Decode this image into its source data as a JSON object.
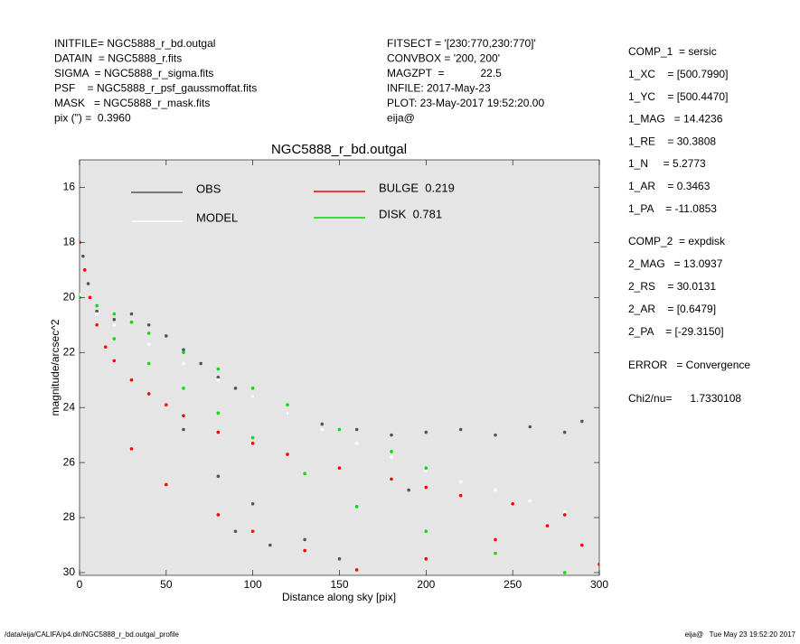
{
  "header": {
    "left": [
      "INITFILE= NGC5888_r_bd.outgal",
      "DATAIN  = NGC5888_r.fits",
      "SIGMA  = NGC5888_r_sigma.fits",
      "PSF    = NGC5888_r_psf_gaussmoffat.fits",
      "MASK   = NGC5888_r_mask.fits",
      "pix (\") =  0.3960"
    ],
    "middle": [
      "FITSECT = '[230:770,230:770]'",
      "CONVBOX = '200, 200'",
      "MAGZPT  =            22.5",
      "INFILE: 2017-May-23",
      "PLOT: 23-May-2017 19:52:20.00",
      "eija@"
    ],
    "right": [
      "COMP_1  = sersic",
      "1_XC    = [500.7990]",
      "1_YC    = [500.4470]",
      "1_MAG   = 14.4236",
      "1_RE    = 30.3808",
      "1_N     = 5.2773",
      "1_AR    = 0.3463",
      "1_PA    = -11.0853",
      "COMP_2  = expdisk",
      "2_MAG   = 13.0937",
      "2_RS    = 30.0131",
      "2_AR    = [0.6479]",
      "2_PA    = [-29.3150]",
      "ERROR   = Convergence",
      "Chi2/nu=      1.7330108"
    ]
  },
  "footer": {
    "left": "/data/eija/CALIFA/p4.dir/NGC5888_r_bd.outgal_profile",
    "right": "eija@   Tue May 23 19:52:20 2017"
  },
  "chart_data": {
    "type": "scatter",
    "title": "NGC5888_r_bd.outgal",
    "x_label": "Distance along sky [pix]",
    "y_label": "magnitude/arcsec^2",
    "xlim": [
      0,
      300
    ],
    "ylim": [
      15,
      30.1
    ],
    "y_inverted": true,
    "xticks": [
      0,
      50,
      100,
      150,
      200,
      250,
      300
    ],
    "yticks": [
      16,
      18,
      20,
      22,
      24,
      26,
      28,
      30
    ],
    "series": [
      {
        "name": "OBS",
        "color": "#555555",
        "x": [
          2,
          5,
          10,
          20,
          30,
          40,
          50,
          60,
          70,
          80,
          90,
          100,
          120,
          140,
          160,
          180,
          200,
          220,
          240,
          260,
          280,
          290,
          60,
          80,
          90,
          100,
          110,
          130,
          150,
          190
        ],
        "y": [
          18.5,
          19.5,
          20.5,
          20.8,
          20.6,
          21.0,
          21.4,
          21.9,
          22.4,
          22.9,
          23.3,
          23.6,
          24.2,
          24.6,
          24.8,
          25.0,
          24.9,
          24.8,
          25.0,
          24.7,
          24.9,
          24.5,
          24.8,
          26.5,
          28.5,
          27.5,
          29.0,
          28.8,
          29.5,
          27.0
        ]
      },
      {
        "name": "MODEL",
        "color": "#ffffff",
        "x": [
          0,
          10,
          20,
          40,
          60,
          80,
          100,
          120,
          140,
          160,
          180,
          200,
          220,
          240,
          260,
          280
        ],
        "y": [
          19.9,
          20.6,
          21.0,
          21.7,
          22.4,
          23.0,
          23.6,
          24.2,
          24.8,
          25.3,
          25.8,
          26.3,
          26.7,
          27.0,
          27.4,
          27.8
        ]
      },
      {
        "name": "BULGE  0.219",
        "color": "#ff0000",
        "x": [
          0,
          3,
          6,
          10,
          15,
          20,
          30,
          40,
          50,
          60,
          80,
          100,
          120,
          150,
          180,
          200,
          220,
          250,
          280,
          290,
          30,
          50,
          80,
          100,
          130,
          160,
          200,
          240,
          270,
          300
        ],
        "y": [
          18,
          19,
          20,
          21,
          21.8,
          22.3,
          23,
          23.5,
          23.9,
          24.3,
          24.9,
          25.3,
          25.7,
          26.2,
          26.6,
          26.9,
          27.2,
          27.5,
          27.9,
          29,
          25.5,
          26.8,
          27.9,
          28.5,
          29.2,
          29.9,
          29.5,
          28.8,
          28.3,
          29.7
        ]
      },
      {
        "name": "DISK  0.781",
        "color": "#00dd00",
        "x": [
          0,
          10,
          20,
          30,
          40,
          60,
          80,
          100,
          120,
          150,
          180,
          200,
          20,
          40,
          60,
          80,
          100,
          130,
          160,
          200,
          240,
          280
        ],
        "y": [
          20,
          20.3,
          20.6,
          20.9,
          21.3,
          22.0,
          22.6,
          23.3,
          23.9,
          24.8,
          25.6,
          26.2,
          21.5,
          22.4,
          23.3,
          24.2,
          25.1,
          26.4,
          27.6,
          28.5,
          29.3,
          30.0
        ]
      }
    ]
  }
}
